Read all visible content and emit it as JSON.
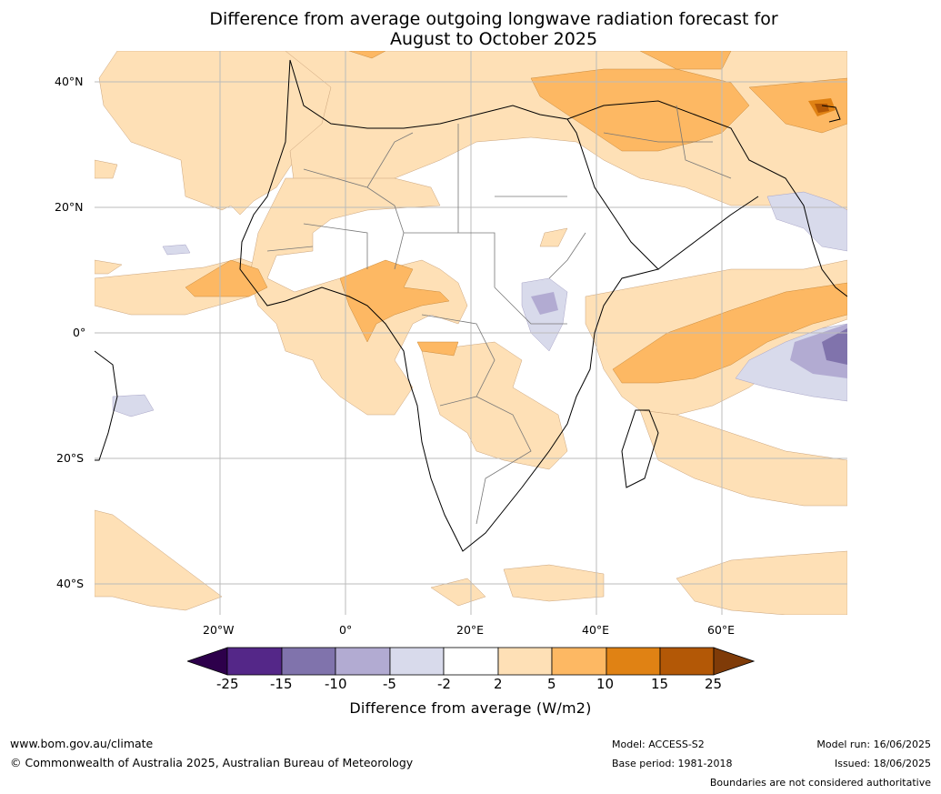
{
  "title": {
    "line1": "Difference from average outgoing longwave radiation forecast for",
    "line2": "August to October 2025"
  },
  "map": {
    "lat_labels": [
      "40°N",
      "20°N",
      "0°",
      "20°S",
      "40°S"
    ],
    "lon_labels": [
      "20°W",
      "0°",
      "20°E",
      "40°E",
      "60°E"
    ],
    "extent": {
      "lon_min": -40,
      "lon_max": 80,
      "lat_min": -45,
      "lat_max": 45
    }
  },
  "colorbar": {
    "ticks": [
      "-25",
      "-15",
      "-10",
      "-5",
      "-2",
      "2",
      "5",
      "10",
      "15",
      "25"
    ],
    "colors": [
      "#2d004b",
      "#542788",
      "#8073ac",
      "#b2abd2",
      "#d8daeb",
      "#ffffff",
      "#fee0b6",
      "#fdb863",
      "#e08214",
      "#b35806",
      "#7f3b08"
    ],
    "label": "Difference from average (W/m2)"
  },
  "footer": {
    "website": "www.bom.gov.au/climate",
    "copyright": "© Commonwealth of Australia 2025, Australian Bureau of Meteorology",
    "model": "Model: ACCESS-S2",
    "base_period": "Base period: 1981-2018",
    "model_run": "Model run: 16/06/2025",
    "issued": "Issued: 18/06/2025",
    "disclaimer": "Boundaries are not considered authoritative"
  }
}
